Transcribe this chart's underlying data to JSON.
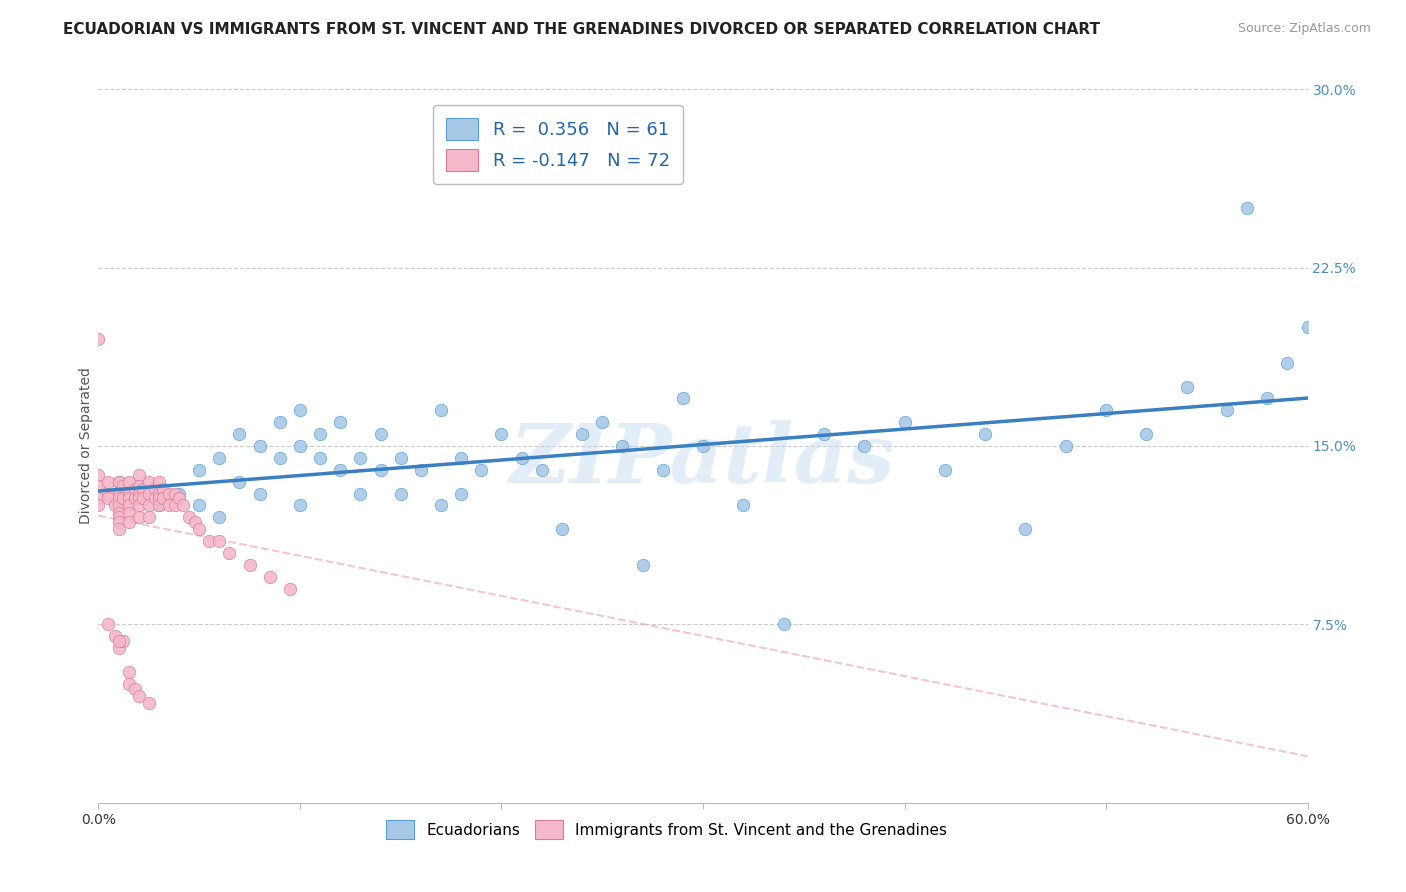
{
  "title": "ECUADORIAN VS IMMIGRANTS FROM ST. VINCENT AND THE GRENADINES DIVORCED OR SEPARATED CORRELATION CHART",
  "source": "Source: ZipAtlas.com",
  "ylabel": "Divorced or Separated",
  "xlim": [
    0.0,
    0.6
  ],
  "ylim": [
    0.0,
    0.3
  ],
  "xticks": [
    0.0,
    0.1,
    0.2,
    0.3,
    0.4,
    0.5,
    0.6
  ],
  "xticklabels": [
    "0.0%",
    "",
    "",
    "",
    "",
    "",
    "60.0%"
  ],
  "yticks_right": [
    0.075,
    0.15,
    0.225,
    0.3
  ],
  "ytick_right_labels": [
    "7.5%",
    "15.0%",
    "22.5%",
    "30.0%"
  ],
  "watermark": "ZIPatlas",
  "blue_color": "#a8c8e8",
  "blue_edge_color": "#5a9fd4",
  "pink_color": "#f5b8c8",
  "pink_edge_color": "#d87898",
  "blue_line_color": "#3a7fc1",
  "pink_line_color": "#e8a0b0",
  "r1": 0.356,
  "n1": 61,
  "r2": -0.147,
  "n2": 72,
  "blue_scatter_x": [
    0.01,
    0.02,
    0.03,
    0.04,
    0.05,
    0.05,
    0.06,
    0.06,
    0.07,
    0.07,
    0.08,
    0.08,
    0.09,
    0.09,
    0.1,
    0.1,
    0.1,
    0.11,
    0.11,
    0.12,
    0.12,
    0.13,
    0.13,
    0.14,
    0.14,
    0.15,
    0.15,
    0.16,
    0.17,
    0.17,
    0.18,
    0.18,
    0.19,
    0.2,
    0.21,
    0.22,
    0.23,
    0.24,
    0.25,
    0.26,
    0.27,
    0.28,
    0.29,
    0.3,
    0.32,
    0.34,
    0.36,
    0.38,
    0.4,
    0.42,
    0.44,
    0.46,
    0.48,
    0.5,
    0.52,
    0.54,
    0.56,
    0.58,
    0.59,
    0.6,
    0.57
  ],
  "blue_scatter_y": [
    0.135,
    0.13,
    0.125,
    0.13,
    0.125,
    0.14,
    0.12,
    0.145,
    0.135,
    0.155,
    0.13,
    0.15,
    0.145,
    0.16,
    0.125,
    0.15,
    0.165,
    0.145,
    0.155,
    0.14,
    0.16,
    0.145,
    0.13,
    0.155,
    0.14,
    0.145,
    0.13,
    0.14,
    0.165,
    0.125,
    0.145,
    0.13,
    0.14,
    0.155,
    0.145,
    0.14,
    0.115,
    0.155,
    0.16,
    0.15,
    0.1,
    0.14,
    0.17,
    0.15,
    0.125,
    0.075,
    0.155,
    0.15,
    0.16,
    0.14,
    0.155,
    0.115,
    0.15,
    0.165,
    0.155,
    0.175,
    0.165,
    0.17,
    0.185,
    0.2,
    0.25
  ],
  "pink_scatter_x": [
    0.0,
    0.0,
    0.0,
    0.0,
    0.0,
    0.005,
    0.005,
    0.005,
    0.008,
    0.01,
    0.01,
    0.01,
    0.01,
    0.01,
    0.01,
    0.01,
    0.01,
    0.012,
    0.012,
    0.015,
    0.015,
    0.015,
    0.015,
    0.015,
    0.015,
    0.018,
    0.018,
    0.02,
    0.02,
    0.02,
    0.02,
    0.02,
    0.02,
    0.022,
    0.022,
    0.025,
    0.025,
    0.025,
    0.025,
    0.028,
    0.028,
    0.03,
    0.03,
    0.03,
    0.03,
    0.032,
    0.032,
    0.035,
    0.035,
    0.038,
    0.038,
    0.04,
    0.042,
    0.045,
    0.048,
    0.05,
    0.055,
    0.06,
    0.065,
    0.075,
    0.085,
    0.095,
    0.01,
    0.012,
    0.015,
    0.018,
    0.02,
    0.025,
    0.005,
    0.008,
    0.01,
    0.015
  ],
  "pink_scatter_y": [
    0.195,
    0.138,
    0.133,
    0.128,
    0.125,
    0.135,
    0.13,
    0.128,
    0.125,
    0.135,
    0.13,
    0.128,
    0.125,
    0.122,
    0.12,
    0.118,
    0.115,
    0.133,
    0.128,
    0.135,
    0.13,
    0.128,
    0.125,
    0.122,
    0.118,
    0.132,
    0.128,
    0.138,
    0.133,
    0.13,
    0.128,
    0.125,
    0.12,
    0.132,
    0.128,
    0.135,
    0.13,
    0.125,
    0.12,
    0.132,
    0.128,
    0.135,
    0.13,
    0.128,
    0.125,
    0.132,
    0.128,
    0.13,
    0.125,
    0.13,
    0.125,
    0.128,
    0.125,
    0.12,
    0.118,
    0.115,
    0.11,
    0.11,
    0.105,
    0.1,
    0.095,
    0.09,
    0.065,
    0.068,
    0.05,
    0.048,
    0.045,
    0.042,
    0.075,
    0.07,
    0.068,
    0.055
  ],
  "background_color": "#ffffff",
  "grid_color": "#cccccc",
  "title_fontsize": 11,
  "label_fontsize": 10,
  "tick_fontsize": 10,
  "scatter_size": 80
}
